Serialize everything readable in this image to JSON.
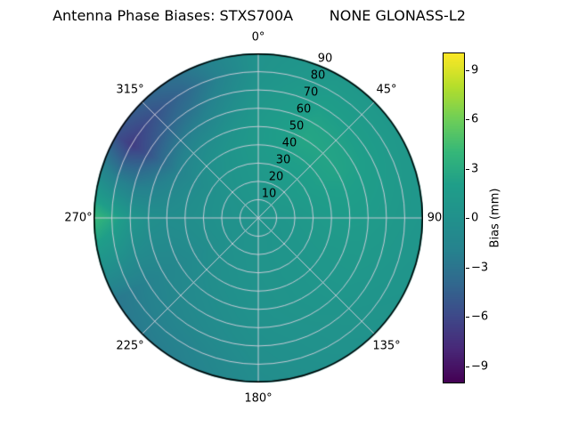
{
  "title": "Antenna Phase Biases: STXS700A        NONE GLONASS-L2",
  "colors": {
    "background": "#ffffff",
    "grid": "rgba(205,205,218,0.95)",
    "outline": "#000000",
    "viridis": [
      "#440154",
      "#482878",
      "#3e4989",
      "#31688e",
      "#26828e",
      "#21918c",
      "#1f9e89",
      "#35b779",
      "#6ece58",
      "#b5de2b",
      "#fde725"
    ]
  },
  "chart_data": {
    "type": "heatmap",
    "projection": "polar",
    "title": "Antenna Phase Biases: STXS700A        NONE GLONASS-L2",
    "antenna": "STXS700A",
    "dome": "NONE",
    "signal": "GLONASS-L2",
    "azimuth_deg": [
      0,
      30,
      60,
      90,
      120,
      150,
      180,
      210,
      240,
      270,
      300,
      330
    ],
    "zenith_deg": [
      0,
      10,
      20,
      30,
      40,
      50,
      60,
      70,
      80,
      90
    ],
    "bias_mm": [
      [
        0.5,
        0.5,
        0.5,
        0.5,
        0.5,
        0.5,
        0.5,
        0.5,
        0.5,
        0.5,
        0.5,
        0.5
      ],
      [
        0.8,
        1.0,
        1.0,
        0.8,
        0.6,
        0.5,
        0.4,
        0.3,
        0.2,
        0.3,
        0.4,
        0.6
      ],
      [
        1.0,
        1.4,
        1.4,
        1.0,
        0.8,
        0.6,
        0.4,
        0.2,
        0.0,
        0.1,
        0.2,
        0.6
      ],
      [
        1.2,
        1.8,
        1.8,
        1.3,
        0.9,
        0.6,
        0.4,
        0.0,
        -0.4,
        -0.2,
        -0.2,
        0.5
      ],
      [
        1.4,
        2.2,
        2.2,
        1.5,
        1.0,
        0.6,
        0.3,
        -0.2,
        -0.8,
        -0.4,
        -0.8,
        0.3
      ],
      [
        1.3,
        2.6,
        2.4,
        1.6,
        1.0,
        0.6,
        0.2,
        -0.5,
        -1.2,
        -0.5,
        -1.8,
        -0.5
      ],
      [
        1.0,
        2.4,
        2.2,
        1.5,
        1.0,
        0.5,
        0.0,
        -0.8,
        -1.5,
        -0.2,
        -3.5,
        -1.8
      ],
      [
        0.6,
        2.0,
        1.8,
        1.3,
        0.8,
        0.3,
        -0.2,
        -1.2,
        -2.0,
        0.8,
        -5.5,
        -3.0
      ],
      [
        0.3,
        1.5,
        1.4,
        1.0,
        0.6,
        0.2,
        -0.4,
        -1.8,
        -2.4,
        2.8,
        -6.8,
        -4.0
      ],
      [
        0.2,
        1.0,
        1.0,
        0.8,
        0.5,
        0.0,
        -0.6,
        -2.2,
        -2.8,
        4.2,
        -5.5,
        -3.2
      ]
    ],
    "vmin": -10,
    "vmax": 10,
    "colormap": "viridis",
    "colorbar_label": "Bias (mm)",
    "colorbar_ticks": [
      9,
      6,
      3,
      0,
      -3,
      -6,
      -9
    ],
    "colorbar_tick_labels": [
      "9",
      "6",
      "3",
      "0",
      "−3",
      "−6",
      "−9"
    ],
    "angle_tick_labels": [
      "0°",
      "45°",
      "90",
      "135°",
      "180°",
      "225°",
      "270°",
      "315°"
    ],
    "radial_tick_labels": [
      "10",
      "20",
      "30",
      "40",
      "50",
      "60",
      "70",
      "80",
      "90"
    ],
    "grid": true,
    "legend_position": "right-colorbar"
  }
}
